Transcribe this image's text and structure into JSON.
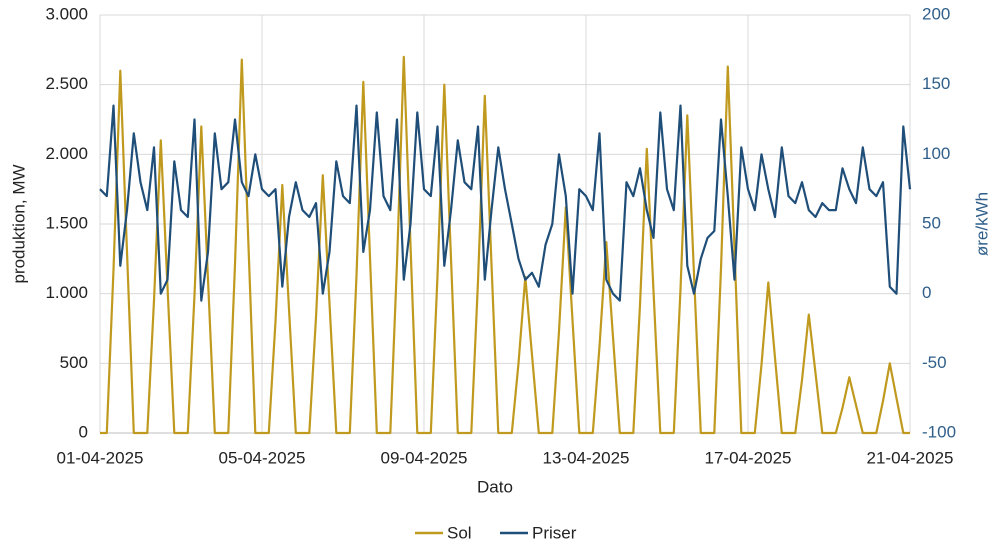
{
  "chart_data": {
    "type": "line",
    "xlabel": "Dato",
    "ylabel": "produktion, MW",
    "y2label": "øre/kWh",
    "categories": [
      "01-04-2025",
      null,
      null,
      null,
      null,
      null,
      null,
      null,
      null,
      null,
      null,
      null,
      null,
      null,
      null,
      null,
      null,
      null,
      null,
      null,
      null,
      null,
      null,
      null,
      "05-04-2025",
      null,
      null,
      null,
      null,
      null,
      null,
      null,
      null,
      null,
      null,
      null,
      null,
      null,
      null,
      null,
      null,
      null,
      null,
      null,
      null,
      null,
      null,
      null,
      "09-04-2025",
      null,
      null,
      null,
      null,
      null,
      null,
      null,
      null,
      null,
      null,
      null,
      null,
      null,
      null,
      null,
      null,
      null,
      null,
      null,
      null,
      null,
      null,
      null,
      "13-04-2025",
      null,
      null,
      null,
      null,
      null,
      null,
      null,
      null,
      null,
      null,
      null,
      null,
      null,
      null,
      null,
      null,
      null,
      null,
      null,
      null,
      null,
      null,
      null,
      "17-04-2025",
      null,
      null,
      null,
      null,
      null,
      null,
      null,
      null,
      null,
      null,
      null,
      null,
      null,
      null,
      null,
      null,
      null,
      null,
      null,
      null,
      null,
      null,
      null,
      "21-04-2025"
    ],
    "series": [
      {
        "name": "Sol",
        "color": "#c09a1e",
        "axis": "y",
        "values": [
          0,
          0,
          1170,
          2600,
          1300,
          0,
          0,
          0,
          950,
          2100,
          1050,
          0,
          0,
          0,
          990,
          2200,
          1100,
          0,
          0,
          0,
          1210,
          2680,
          1340,
          0,
          0,
          0,
          800,
          1780,
          890,
          0,
          0,
          0,
          830,
          1850,
          930,
          0,
          0,
          0,
          1130,
          2520,
          1260,
          0,
          0,
          0,
          1220,
          2700,
          1350,
          0,
          0,
          0,
          1130,
          2500,
          1250,
          0,
          0,
          0,
          1090,
          2420,
          1210,
          0,
          0,
          0,
          500,
          1120,
          560,
          0,
          0,
          0,
          730,
          1620,
          810,
          0,
          0,
          0,
          620,
          1370,
          690,
          0,
          0,
          0,
          920,
          2040,
          1020,
          0,
          0,
          0,
          1030,
          2280,
          1140,
          0,
          0,
          0,
          1180,
          2630,
          1320,
          0,
          0,
          0,
          490,
          1080,
          540,
          0,
          0,
          0,
          380,
          850,
          430,
          0,
          0,
          0,
          180,
          400,
          200,
          0,
          0,
          0,
          230,
          500,
          250,
          0,
          0
        ]
      },
      {
        "name": "Priser",
        "color": "#1f4e79",
        "axis": "y2",
        "values": [
          75,
          70,
          135,
          20,
          60,
          115,
          80,
          60,
          105,
          0,
          10,
          95,
          60,
          55,
          125,
          -5,
          30,
          115,
          75,
          80,
          125,
          80,
          70,
          100,
          75,
          70,
          75,
          5,
          55,
          80,
          60,
          55,
          65,
          0,
          30,
          95,
          70,
          65,
          135,
          30,
          60,
          130,
          70,
          60,
          125,
          10,
          50,
          130,
          75,
          70,
          120,
          20,
          60,
          110,
          80,
          75,
          120,
          10,
          60,
          105,
          75,
          50,
          25,
          10,
          15,
          5,
          35,
          50,
          100,
          70,
          0,
          75,
          70,
          60,
          115,
          10,
          0,
          -5,
          80,
          70,
          90,
          60,
          40,
          130,
          75,
          60,
          135,
          20,
          0,
          25,
          40,
          45,
          125,
          70,
          10,
          105,
          75,
          60,
          100,
          75,
          55,
          105,
          70,
          65,
          80,
          60,
          55,
          65,
          60,
          60,
          90,
          75,
          65,
          105,
          75,
          70,
          80,
          5,
          0,
          120,
          75
        ]
      }
    ],
    "ylim": [
      0,
      3000
    ],
    "yticks": [
      0,
      500,
      {
        "value": 1000,
        "label": "1.000"
      },
      {
        "value": 1500,
        "label": "1.500"
      },
      {
        "value": 2000,
        "label": "2.000"
      },
      {
        "value": 2500,
        "label": "2.500"
      },
      {
        "value": 3000,
        "label": "3.000"
      }
    ],
    "y2lim": [
      -100,
      200
    ],
    "y2ticks": [
      -100,
      -50,
      0,
      50,
      100,
      150,
      200
    ],
    "grid": true,
    "legend": "bottom"
  }
}
